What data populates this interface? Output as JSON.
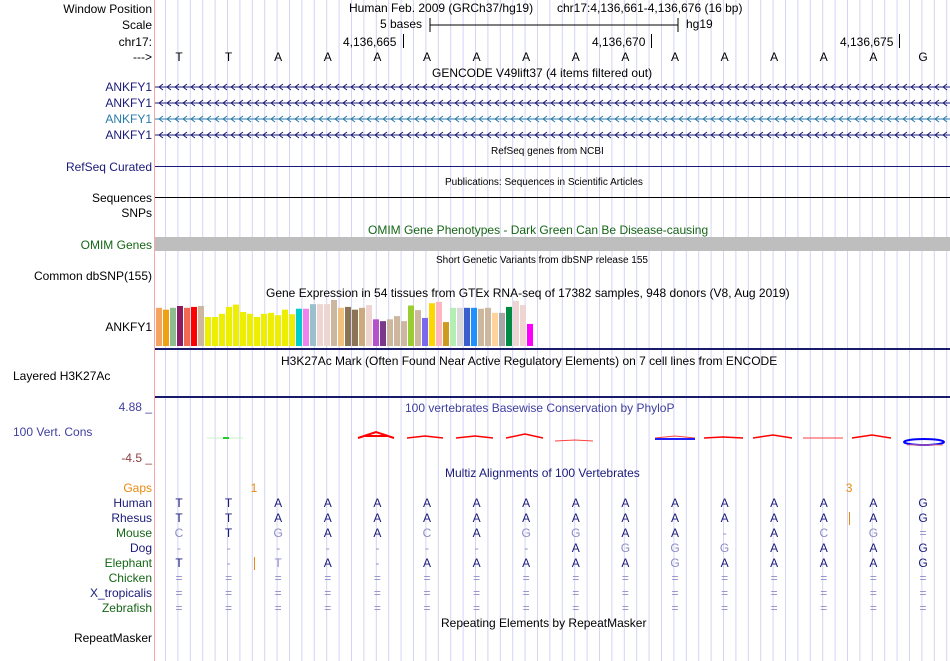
{
  "header": {
    "window_position_label": "Window Position",
    "scale_label": "Scale",
    "chrom_label": "chr17:",
    "strand_label": "--->",
    "assembly_text": "Human Feb. 2009 (GRCh37/hg19)",
    "position_text": "chr17:4,136,661-4,136,676 (16 bp)",
    "scale_text": "5 bases",
    "db_text": "hg19",
    "ticks": [
      "4,136,665",
      "4,136,670",
      "4,136,675"
    ]
  },
  "sequence": [
    "T",
    "T",
    "A",
    "A",
    "A",
    "A",
    "A",
    "A",
    "A",
    "A",
    "A",
    "A",
    "A",
    "A",
    "A",
    "G"
  ],
  "gencode": {
    "title": "GENCODE V49lift37 (4 items filtered out)",
    "items": [
      {
        "label": "ANKFY1",
        "color": "#1a1a7a"
      },
      {
        "label": "ANKFY1",
        "color": "#1a1a7a"
      },
      {
        "label": "ANKFY1",
        "color": "#2a7aaa"
      },
      {
        "label": "ANKFY1",
        "color": "#1a1a7a"
      }
    ]
  },
  "refseq": {
    "title": "RefSeq genes from NCBI",
    "label": "RefSeq Curated"
  },
  "publications": {
    "title": "Publications: Sequences in Scientific Articles",
    "label1": "Sequences",
    "label2": "SNPs"
  },
  "omim": {
    "title": "OMIM Gene Phenotypes - Dark Green Can Be Disease-causing",
    "label": "OMIM Genes"
  },
  "dbsnp": {
    "title": "Short Genetic Variants from dbSNP release 155",
    "label": "Common dbSNP(155)"
  },
  "gtex": {
    "title": "Gene Expression in 54 tissues from GTEx RNA-seq of 17382 samples, 948 donors (V8, Aug 2019)",
    "label": "ANKFY1",
    "bars": [
      {
        "color": "#f4a460",
        "value": 0.83
      },
      {
        "color": "#eea111",
        "value": 0.79
      },
      {
        "color": "#8fbc8f",
        "value": 0.83
      },
      {
        "color": "#8b1c62",
        "value": 0.87
      },
      {
        "color": "#ee6a50",
        "value": 0.83
      },
      {
        "color": "#ff0000",
        "value": 0.85
      },
      {
        "color": "#cdb79e",
        "value": 0.87
      },
      {
        "color": "#eeee00",
        "value": 0.63
      },
      {
        "color": "#eeee00",
        "value": 0.63
      },
      {
        "color": "#eeee00",
        "value": 0.7
      },
      {
        "color": "#eeee00",
        "value": 0.85
      },
      {
        "color": "#eeee00",
        "value": 0.9
      },
      {
        "color": "#eeee00",
        "value": 0.74
      },
      {
        "color": "#eeee00",
        "value": 0.7
      },
      {
        "color": "#eeee00",
        "value": 0.63
      },
      {
        "color": "#eeee00",
        "value": 0.7
      },
      {
        "color": "#eeee00",
        "value": 0.72
      },
      {
        "color": "#eeee00",
        "value": 0.67
      },
      {
        "color": "#eeee00",
        "value": 0.79
      },
      {
        "color": "#eeee00",
        "value": 0.69
      },
      {
        "color": "#00cdcd",
        "value": 0.81
      },
      {
        "color": "#ee82ee",
        "value": 0.81
      },
      {
        "color": "#9ac0cd",
        "value": 0.91
      },
      {
        "color": "#eed5d2",
        "value": 0.91
      },
      {
        "color": "#eed5d2",
        "value": 0.91
      },
      {
        "color": "#cdb79e",
        "value": 1.0
      },
      {
        "color": "#f0c080",
        "value": 0.83
      },
      {
        "color": "#8b7355",
        "value": 0.85
      },
      {
        "color": "#8b7355",
        "value": 0.79
      },
      {
        "color": "#cdaa7d",
        "value": 0.83
      },
      {
        "color": "#eed5d2",
        "value": 0.89
      },
      {
        "color": "#b452cd",
        "value": 0.58
      },
      {
        "color": "#7a378b",
        "value": 0.54
      },
      {
        "color": "#cdb79e",
        "value": 0.58
      },
      {
        "color": "#cdb79e",
        "value": 0.65
      },
      {
        "color": "#cdb79e",
        "value": 0.54
      },
      {
        "color": "#9acd32",
        "value": 0.88
      },
      {
        "color": "#cdb79e",
        "value": 0.78
      },
      {
        "color": "#7b68ee",
        "value": 0.61
      },
      {
        "color": "#ffd700",
        "value": 0.93
      },
      {
        "color": "#ffb6c1",
        "value": 0.96
      },
      {
        "color": "#cd9b1d",
        "value": 0.52
      },
      {
        "color": "#b4eeb4",
        "value": 0.83
      },
      {
        "color": "#d9d9d9",
        "value": 0.83
      },
      {
        "color": "#3a5fcd",
        "value": 0.83
      },
      {
        "color": "#1e90ff",
        "value": 0.83
      },
      {
        "color": "#cdb79e",
        "value": 0.81
      },
      {
        "color": "#cdb79e",
        "value": 0.83
      },
      {
        "color": "#ffd39b",
        "value": 0.72
      },
      {
        "color": "#a6a6a6",
        "value": 0.72
      },
      {
        "color": "#008b45",
        "value": 0.85
      },
      {
        "color": "#eed5d2",
        "value": 0.98
      },
      {
        "color": "#eed5d2",
        "value": 0.89
      },
      {
        "color": "#ff00ff",
        "value": 0.48
      }
    ]
  },
  "h3k27ac": {
    "title": "H3K27Ac Mark (Often Found Near Active Regulatory Elements) on 7 cell lines from ENCODE",
    "label": "Layered H3K27Ac"
  },
  "phylop": {
    "title": "100 vertebrates Basewise Conservation by PhyloP",
    "label": "100 Vert. Cons",
    "max_label": "4.88 _",
    "min_label": "-4.5 _",
    "range": [
      -4.5,
      4.88
    ]
  },
  "multiz": {
    "title": "Multiz Alignments of 100 Vertebrates",
    "gaps_label": "Gaps",
    "gap_markers": [
      {
        "after_base": 2,
        "text": "1"
      },
      {
        "after_base": 14,
        "text": "3"
      }
    ],
    "species": [
      {
        "name": "Human",
        "color": "navy",
        "bases": [
          "T",
          "T",
          "A",
          "A",
          "A",
          "A",
          "A",
          "A",
          "A",
          "A",
          "A",
          "A",
          "A",
          "A",
          "A",
          "G"
        ]
      },
      {
        "name": "Rhesus",
        "color": "navy",
        "bases": [
          "T",
          "T",
          "A",
          "A",
          "A",
          "A",
          "A",
          "A",
          "A",
          "A",
          "A",
          "A",
          "A",
          "A",
          "A",
          "G"
        ]
      },
      {
        "name": "Mouse",
        "color": "green",
        "bases": [
          "C",
          "T",
          "G",
          "A",
          "A",
          "C",
          "A",
          "G",
          "G",
          "A",
          "A",
          "-",
          "A",
          "C",
          "G",
          "="
        ]
      },
      {
        "name": "Dog",
        "color": "navy",
        "bases": [
          "-",
          "-",
          "-",
          "-",
          "-",
          "-",
          "-",
          "-",
          "A",
          "G",
          "G",
          "G",
          "A",
          "A",
          "A",
          "G"
        ]
      },
      {
        "name": "Elephant",
        "color": "green",
        "bases": [
          "T",
          "-",
          "T",
          "A",
          "-",
          "A",
          "A",
          "A",
          "A",
          "A",
          "G",
          "A",
          "A",
          "A",
          "A",
          "G"
        ]
      },
      {
        "name": "Chicken",
        "color": "green",
        "bases": [
          "=",
          "=",
          "=",
          "=",
          "=",
          "=",
          "=",
          "=",
          "=",
          "=",
          "=",
          "=",
          "=",
          "=",
          "=",
          "="
        ]
      },
      {
        "name": "X_tropicalis",
        "color": "navy",
        "bases": [
          "=",
          "=",
          "=",
          "=",
          "=",
          "=",
          "=",
          "=",
          "=",
          "=",
          "=",
          "=",
          "=",
          "=",
          "=",
          "="
        ]
      },
      {
        "name": "Zebrafish",
        "color": "green",
        "bases": [
          "=",
          "=",
          "=",
          "=",
          "=",
          "=",
          "=",
          "=",
          "=",
          "=",
          "=",
          "=",
          "=",
          "=",
          "=",
          "="
        ]
      }
    ]
  },
  "repeatmasker": {
    "title": "Repeating Elements by RepeatMasker",
    "label": "RepeatMasker"
  }
}
